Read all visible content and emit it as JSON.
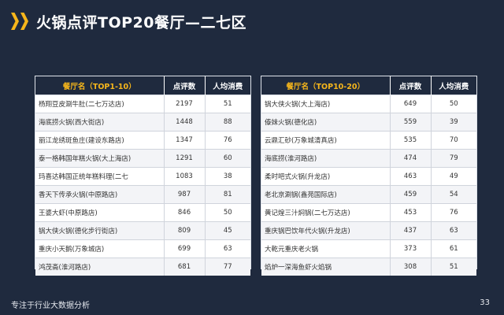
{
  "title": "火锅点评TOP20餐厅—二七区",
  "left_table": {
    "headers": [
      "餐厅名（TOP1-10）",
      "点评数",
      "人均消费"
    ],
    "rows": [
      [
        "杨翔豆皮涮牛肚(二七万达店)",
        "2197",
        "51"
      ],
      [
        "海底捞火锅(西大街店)",
        "1448",
        "88"
      ],
      [
        "丽江龙绣斑鱼庄(建设东路店)",
        "1347",
        "76"
      ],
      [
        "泰一格韩国年糕火锅(大上海店)",
        "1291",
        "60"
      ],
      [
        "玛喜达韩国正统年糕料理(二七",
        "1083",
        "38"
      ],
      [
        "香天下传承火锅(中原路店)",
        "987",
        "81"
      ],
      [
        "王婆大虾(中原路店)",
        "846",
        "50"
      ],
      [
        "锅大侠火锅(德化步行街店)",
        "809",
        "45"
      ],
      [
        "重庆小天鹅(万象城店)",
        "699",
        "63"
      ],
      [
        "鸿茂斋(淮河路店)",
        "681",
        "77"
      ]
    ]
  },
  "right_table": {
    "headers": [
      "餐厅名（TOP10-20）",
      "点评数",
      "人均消费"
    ],
    "rows": [
      [
        "锅大侠火锅(大上海店)",
        "649",
        "50"
      ],
      [
        "傣妹火锅(德化店)",
        "559",
        "39"
      ],
      [
        "云鼎汇砂(万象城清真店)",
        "535",
        "70"
      ],
      [
        "海底捞(淮河路店)",
        "474",
        "79"
      ],
      [
        "柔时吧式火锅(升龙店)",
        "463",
        "49"
      ],
      [
        "老北京涮锅(鑫苑国际店)",
        "459",
        "54"
      ],
      [
        "黄记煌三汁焖锅(二七万达店)",
        "453",
        "76"
      ],
      [
        "重庆锅巴饮年代火锅(升龙店)",
        "437",
        "63"
      ],
      [
        "大乾元重庆老火锅",
        "373",
        "61"
      ],
      [
        "焰炉一深海鱼虾火焰锅",
        "308",
        "51"
      ]
    ]
  },
  "footer": {
    "tagline": "专注于行业大数据分析",
    "page_number": "33"
  },
  "colors": {
    "background": "#1f2a3e",
    "accent": "#f6b61b",
    "header_text": "#ffffff"
  },
  "icons": {
    "title_marker": "double-chevron-right-icon"
  }
}
